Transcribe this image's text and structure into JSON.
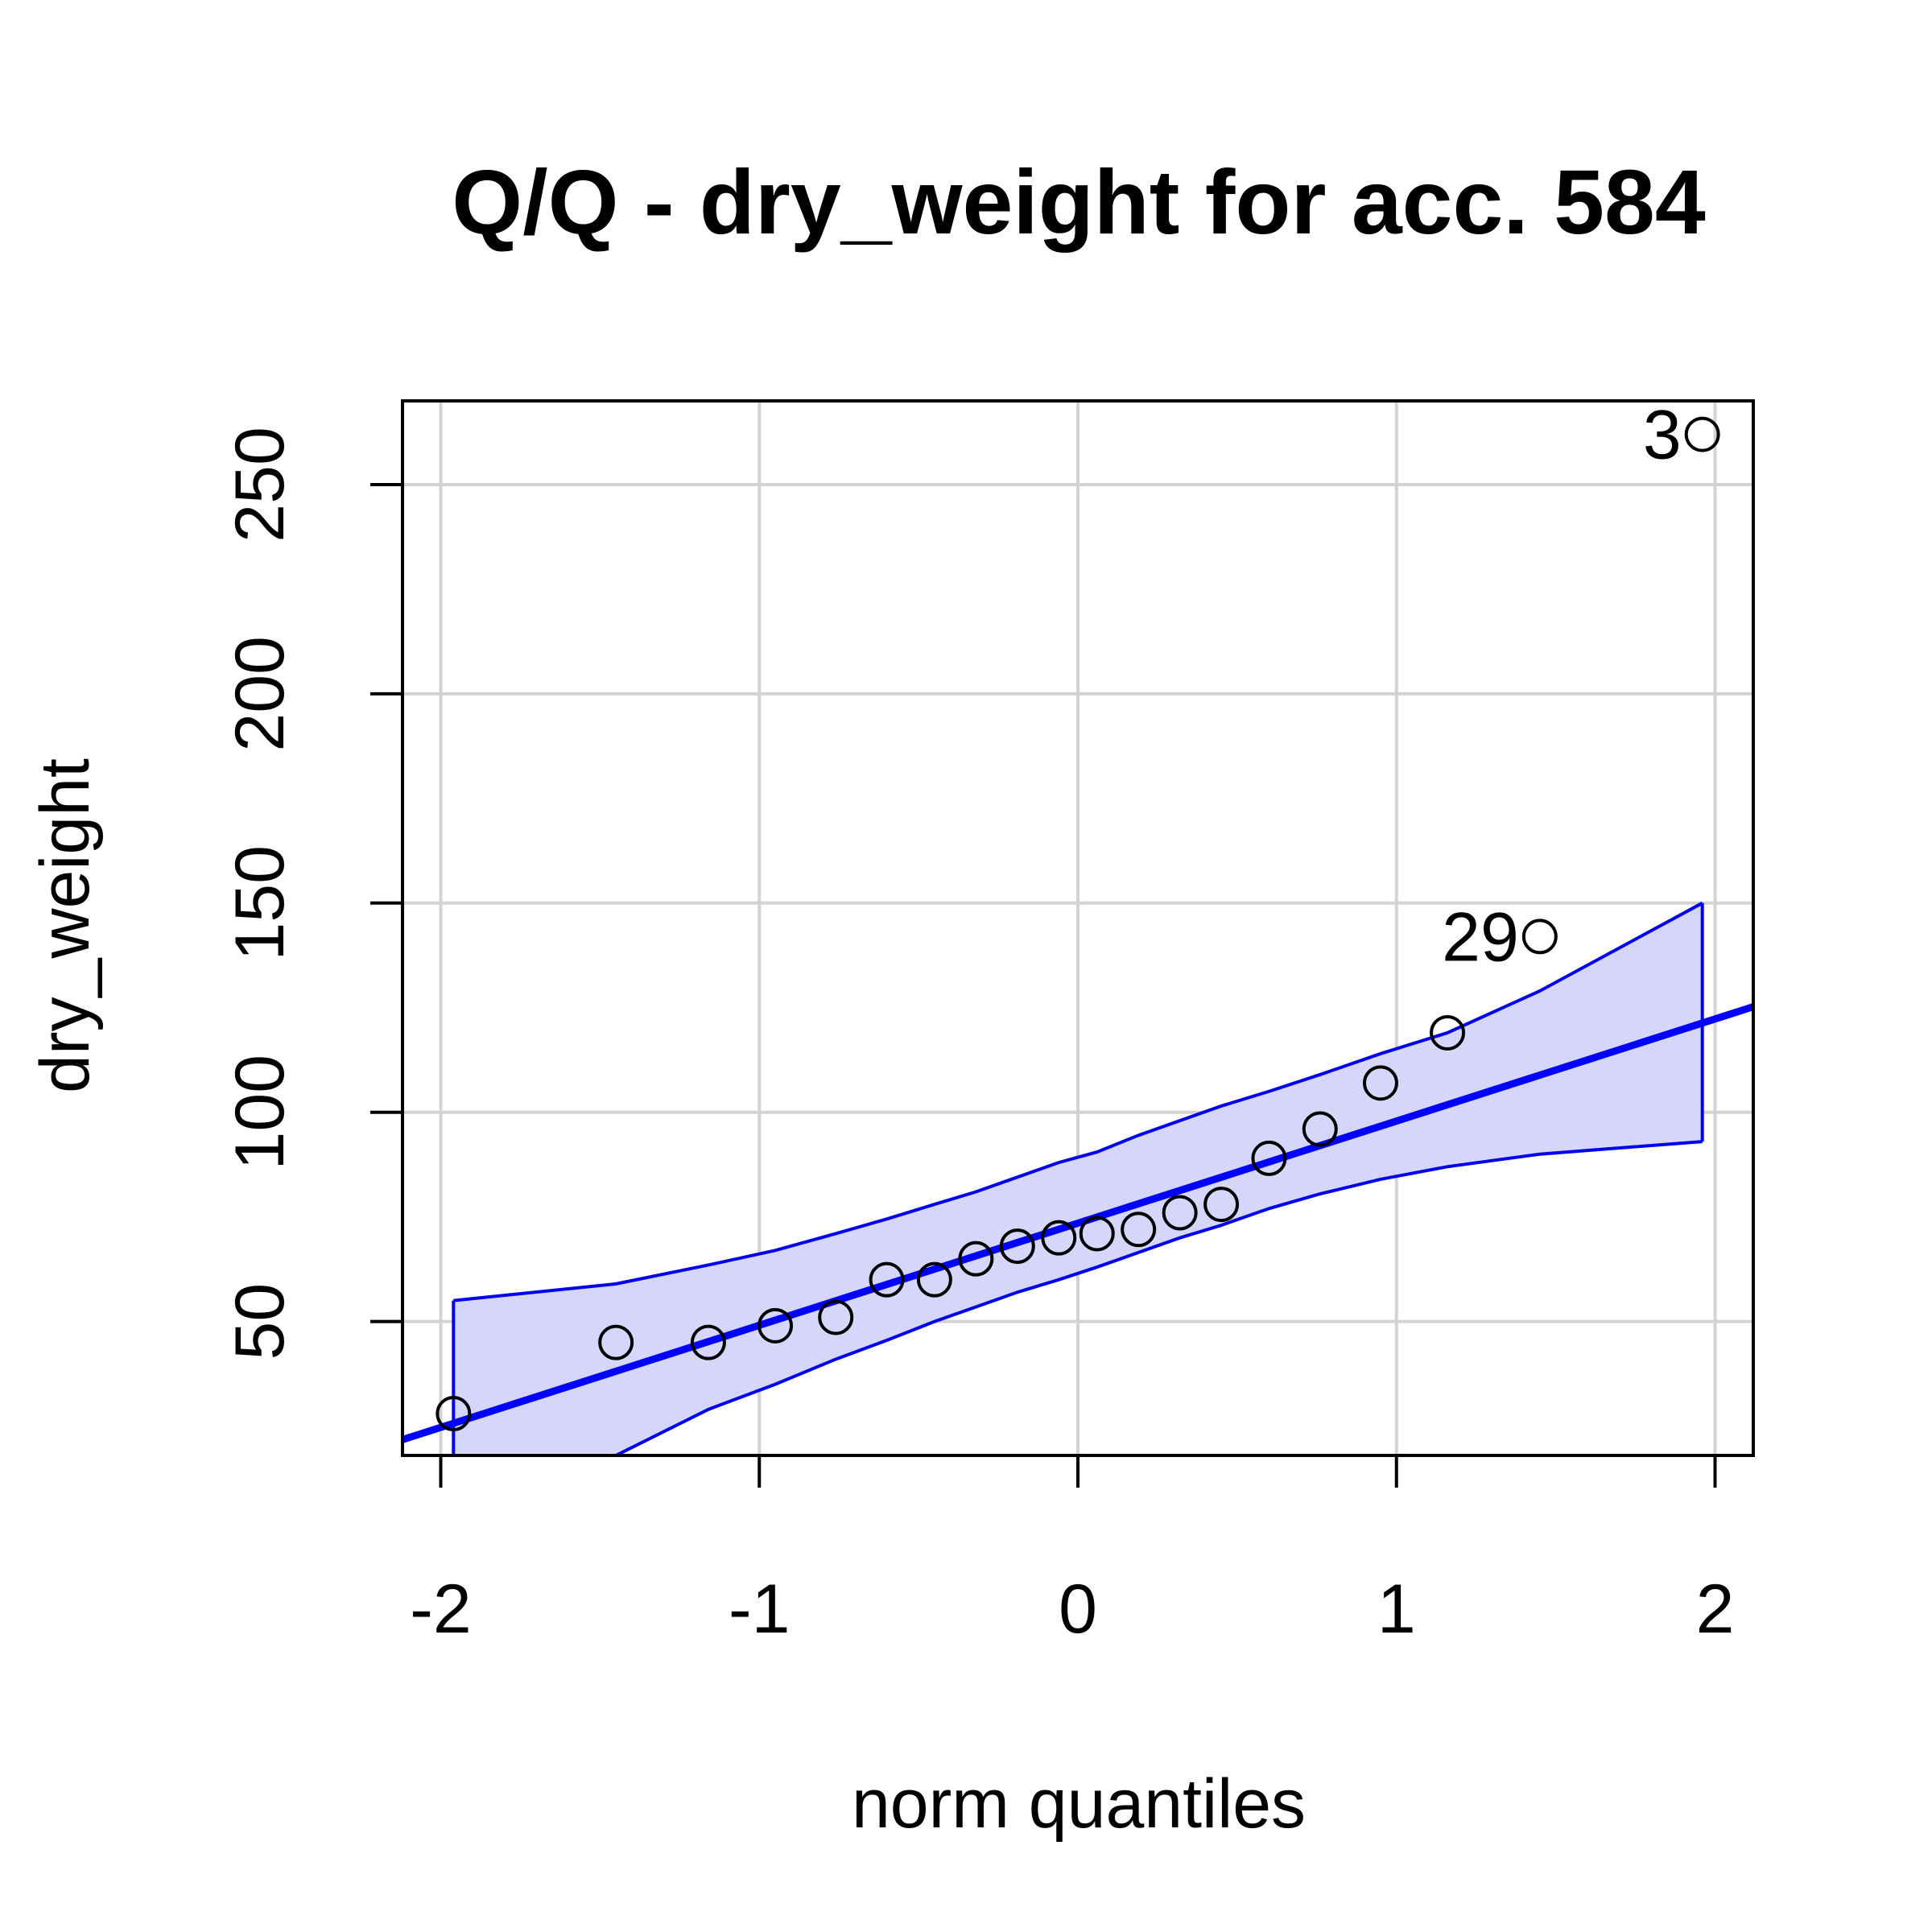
{
  "chart_data": {
    "type": "scatter",
    "title": "Q/Q - dry_weight for acc. 584",
    "xlabel": "norm quantiles",
    "ylabel": "dry_weight",
    "xlim": [
      -2.12,
      2.12
    ],
    "ylim": [
      18,
      270
    ],
    "x_ticks": [
      -2,
      -1,
      0,
      1,
      2
    ],
    "x_tick_labels": [
      "-2",
      "-1",
      "0",
      "1",
      "2"
    ],
    "y_ticks": [
      50,
      100,
      150,
      200,
      250
    ],
    "y_tick_labels": [
      "50",
      "100",
      "150",
      "200",
      "250"
    ],
    "grid": true,
    "points": {
      "x": [
        -1.96,
        -1.45,
        -1.16,
        -0.95,
        -0.76,
        -0.6,
        -0.45,
        -0.32,
        -0.19,
        -0.06,
        0.06,
        0.19,
        0.32,
        0.45,
        0.6,
        0.76,
        0.95,
        1.16,
        1.45,
        1.96
      ],
      "y": [
        28,
        45,
        45,
        49,
        51,
        60,
        60,
        65,
        68,
        70,
        71,
        72,
        76,
        78,
        89,
        96,
        107,
        119,
        142,
        262
      ]
    },
    "point_labels": [
      {
        "text": "29",
        "x": 1.45,
        "y": 142
      },
      {
        "text": "3",
        "x": 1.96,
        "y": 262
      }
    ],
    "reference_line": {
      "intercept": 73.5,
      "slope": 24.4
    },
    "confidence_band": {
      "x": [
        -1.96,
        -1.45,
        -1.16,
        -0.95,
        -0.76,
        -0.6,
        -0.45,
        -0.32,
        -0.19,
        -0.06,
        0.06,
        0.19,
        0.32,
        0.45,
        0.6,
        0.76,
        0.95,
        1.16,
        1.45,
        1.96
      ],
      "upper": [
        55,
        59,
        63.5,
        67,
        71,
        74.5,
        78,
        81,
        84.5,
        88,
        90.5,
        94.5,
        98,
        101.5,
        105,
        109,
        114,
        119,
        129,
        150
      ],
      "lower": [
        -8,
        18,
        29,
        35,
        41,
        45.5,
        50,
        53.5,
        57,
        60,
        63,
        66.5,
        70,
        73,
        77,
        80.5,
        84,
        87,
        90,
        93
      ]
    },
    "colors": {
      "line": "#0000ff",
      "band_fill": "#d6d6fb",
      "band_edge": "#0000ee",
      "points": "#000000",
      "grid": "#d3d3d3"
    }
  }
}
